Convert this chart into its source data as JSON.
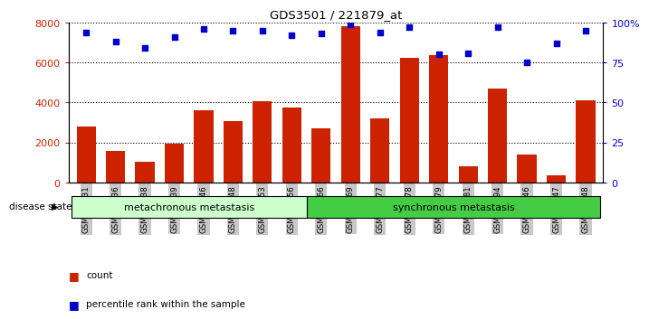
{
  "title": "GDS3501 / 221879_at",
  "samples": [
    "GSM277231",
    "GSM277236",
    "GSM277238",
    "GSM277239",
    "GSM277246",
    "GSM277248",
    "GSM277253",
    "GSM277256",
    "GSM277466",
    "GSM277469",
    "GSM277477",
    "GSM277478",
    "GSM277479",
    "GSM277481",
    "GSM277494",
    "GSM277646",
    "GSM277647",
    "GSM277648"
  ],
  "counts": [
    2800,
    1600,
    1050,
    1950,
    3600,
    3050,
    4050,
    3750,
    2700,
    7800,
    3200,
    6250,
    6350,
    800,
    4700,
    1400,
    350,
    4100
  ],
  "percentiles": [
    94,
    88,
    84,
    91,
    96,
    95,
    95,
    92,
    93,
    99,
    94,
    97,
    80,
    81,
    97,
    75,
    87,
    95
  ],
  "group1_label": "metachronous metastasis",
  "group2_label": "synchronous metastasis",
  "group1_count": 8,
  "group2_count": 10,
  "ylim_left": [
    0,
    8000
  ],
  "ylim_right": [
    0,
    100
  ],
  "yticks_left": [
    0,
    2000,
    4000,
    6000,
    8000
  ],
  "yticks_right": [
    0,
    25,
    50,
    75,
    100
  ],
  "bar_color": "#cc2200",
  "dot_color": "#0000cc",
  "group1_color": "#ccffcc",
  "group2_color": "#44cc44",
  "label_bg_color": "#c8c8c8",
  "legend_count": "count",
  "legend_percentile": "percentile rank within the sample",
  "disease_state_label": "disease state"
}
